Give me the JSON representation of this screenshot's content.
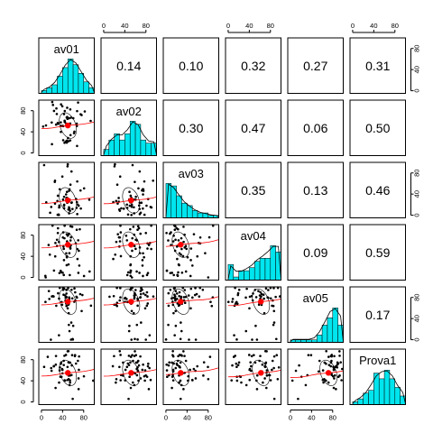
{
  "chart_data": {
    "type": "scatter-matrix",
    "title": "",
    "variables": [
      "av01",
      "av02",
      "av03",
      "av04",
      "av05",
      "Prova1"
    ],
    "ticks": {
      "values": [
        0,
        40,
        80
      ],
      "labels": [
        "0",
        "40",
        "80"
      ],
      "range": [
        -5,
        100
      ]
    },
    "correlations": [
      {
        "row": 0,
        "col": 1,
        "label": "0.14"
      },
      {
        "row": 0,
        "col": 2,
        "label": "0.10"
      },
      {
        "row": 0,
        "col": 3,
        "label": "0.32"
      },
      {
        "row": 0,
        "col": 4,
        "label": "0.27"
      },
      {
        "row": 0,
        "col": 5,
        "label": "0.31"
      },
      {
        "row": 1,
        "col": 2,
        "label": "0.30"
      },
      {
        "row": 1,
        "col": 3,
        "label": "0.47"
      },
      {
        "row": 1,
        "col": 4,
        "label": "0.06"
      },
      {
        "row": 1,
        "col": 5,
        "label": "0.50"
      },
      {
        "row": 2,
        "col": 3,
        "label": "0.35"
      },
      {
        "row": 2,
        "col": 4,
        "label": "0.13"
      },
      {
        "row": 2,
        "col": 5,
        "label": "0.46"
      },
      {
        "row": 3,
        "col": 4,
        "label": "0.09"
      },
      {
        "row": 3,
        "col": 5,
        "label": "0.59"
      },
      {
        "row": 4,
        "col": 5,
        "label": "0.17"
      }
    ],
    "histograms": [
      {
        "variable": "av01",
        "bins": [
          0,
          10,
          20,
          30,
          40,
          50,
          60,
          70,
          80,
          90,
          100
        ],
        "counts": [
          1,
          2,
          3,
          6,
          9,
          12,
          10,
          7,
          4,
          2
        ],
        "density_shape": "normal"
      },
      {
        "variable": "av02",
        "bins": [
          0,
          10,
          20,
          30,
          40,
          50,
          60,
          70,
          80,
          90,
          100
        ],
        "counts": [
          2,
          5,
          7,
          5,
          7,
          11,
          10,
          5,
          4,
          4
        ],
        "density_shape": "flat"
      },
      {
        "variable": "av03",
        "bins": [
          0,
          10,
          20,
          30,
          40,
          50,
          60,
          70,
          80,
          90,
          100
        ],
        "counts": [
          14,
          13,
          9,
          6,
          5,
          3,
          2,
          2,
          1,
          1
        ],
        "density_shape": "right-skewed"
      },
      {
        "variable": "av04",
        "bins": [
          0,
          10,
          20,
          30,
          40,
          50,
          60,
          70,
          80,
          90,
          100
        ],
        "counts": [
          5,
          1,
          3,
          3,
          4,
          6,
          7,
          7,
          11,
          9
        ],
        "density_shape": "left-skewed"
      },
      {
        "variable": "av05",
        "bins": [
          0,
          10,
          20,
          30,
          40,
          50,
          60,
          70,
          80,
          90,
          100
        ],
        "counts": [
          1,
          1,
          1,
          1,
          1,
          3,
          7,
          10,
          14,
          7
        ],
        "density_shape": "left-skewed"
      },
      {
        "variable": "Prova1",
        "bins": [
          0,
          10,
          20,
          30,
          40,
          50,
          60,
          70,
          80,
          90,
          100
        ],
        "counts": [
          1,
          2,
          4,
          5,
          11,
          9,
          12,
          9,
          6,
          3
        ],
        "density_shape": "normal"
      }
    ],
    "scatter_panels": [
      {
        "row": 1,
        "col": 0,
        "x": "av01",
        "y": "av02",
        "mean": [
          50,
          52
        ]
      },
      {
        "row": 2,
        "col": 0,
        "x": "av01",
        "y": "av03",
        "mean": [
          50,
          28
        ]
      },
      {
        "row": 2,
        "col": 1,
        "x": "av02",
        "y": "av03",
        "mean": [
          52,
          28
        ]
      },
      {
        "row": 3,
        "col": 0,
        "x": "av01",
        "y": "av04",
        "mean": [
          50,
          62
        ]
      },
      {
        "row": 3,
        "col": 1,
        "x": "av02",
        "y": "av04",
        "mean": [
          52,
          62
        ]
      },
      {
        "row": 3,
        "col": 2,
        "x": "av03",
        "y": "av04",
        "mean": [
          28,
          62
        ]
      },
      {
        "row": 4,
        "col": 0,
        "x": "av01",
        "y": "av05",
        "mean": [
          50,
          72
        ]
      },
      {
        "row": 4,
        "col": 1,
        "x": "av02",
        "y": "av05",
        "mean": [
          52,
          72
        ]
      },
      {
        "row": 4,
        "col": 2,
        "x": "av03",
        "y": "av05",
        "mean": [
          28,
          72
        ]
      },
      {
        "row": 4,
        "col": 3,
        "x": "av04",
        "y": "av05",
        "mean": [
          62,
          72
        ]
      },
      {
        "row": 5,
        "col": 0,
        "x": "av01",
        "y": "Prova1",
        "mean": [
          50,
          55
        ]
      },
      {
        "row": 5,
        "col": 1,
        "x": "av02",
        "y": "Prova1",
        "mean": [
          52,
          55
        ]
      },
      {
        "row": 5,
        "col": 2,
        "x": "av03",
        "y": "Prova1",
        "mean": [
          28,
          55
        ]
      },
      {
        "row": 5,
        "col": 3,
        "x": "av04",
        "y": "Prova1",
        "mean": [
          62,
          55
        ]
      },
      {
        "row": 5,
        "col": 4,
        "x": "av05",
        "y": "Prova1",
        "mean": [
          72,
          55
        ]
      }
    ],
    "n_points": 55,
    "grid": false,
    "axes": {
      "top": [
        1,
        3,
        5
      ],
      "bottom": [
        0,
        2,
        4
      ],
      "left": [
        1,
        3,
        5
      ],
      "right": [
        0,
        2,
        4
      ]
    },
    "colors": {
      "histogram_fill": "#00e5ee",
      "histogram_stroke": "#000000",
      "density_line": "#000000",
      "points": "#000000",
      "mean_point": "#ff0000",
      "fit_line": "#ff0000",
      "ellipse": "#000000"
    }
  }
}
